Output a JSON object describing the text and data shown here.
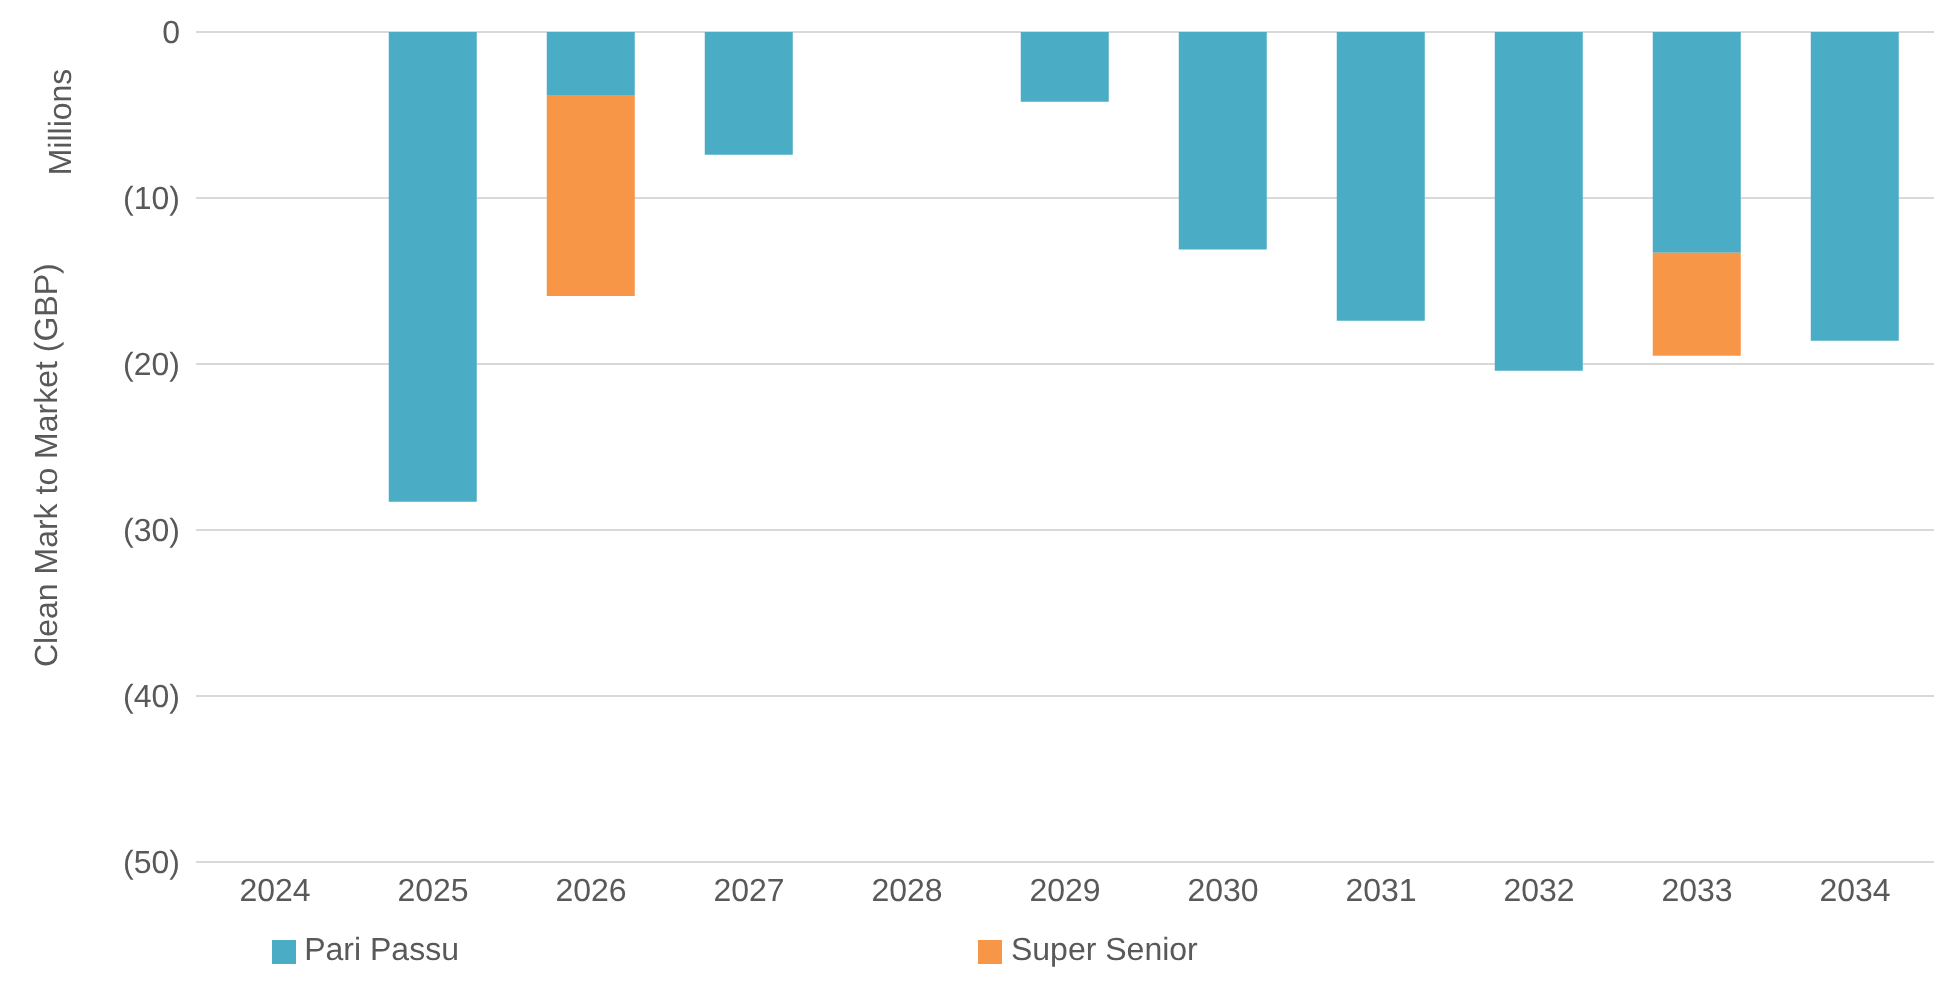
{
  "chart_data": {
    "type": "bar",
    "ylabel": "Clean Mark to Market (GBP)",
    "annotations": [
      "Millions"
    ],
    "categories": [
      "2024",
      "2025",
      "2026",
      "2027",
      "2028",
      "2029",
      "2030",
      "2031",
      "2032",
      "2033",
      "2034"
    ],
    "series": [
      {
        "name": "Pari Passu",
        "color": "#4bacc6",
        "values": [
          null,
          -28.3,
          -3.8,
          -7.4,
          null,
          -4.2,
          -13.1,
          -17.4,
          -20.4,
          -13.3,
          -18.6
        ]
      },
      {
        "name": "Super Senior",
        "color": "#f79646",
        "values": [
          null,
          null,
          -12.1,
          null,
          null,
          null,
          null,
          null,
          null,
          -6.2,
          null
        ]
      }
    ],
    "stacked": true,
    "ylim": [
      -50,
      0
    ],
    "yticks": [
      0,
      {
        "value": -10,
        "label": "(10)"
      },
      {
        "value": -20,
        "label": "(20)"
      },
      {
        "value": -30,
        "label": "(30)"
      },
      {
        "value": -40,
        "label": "(40)"
      },
      {
        "value": -50,
        "label": "(50)"
      }
    ],
    "grid": "y",
    "legend": "bottom"
  }
}
